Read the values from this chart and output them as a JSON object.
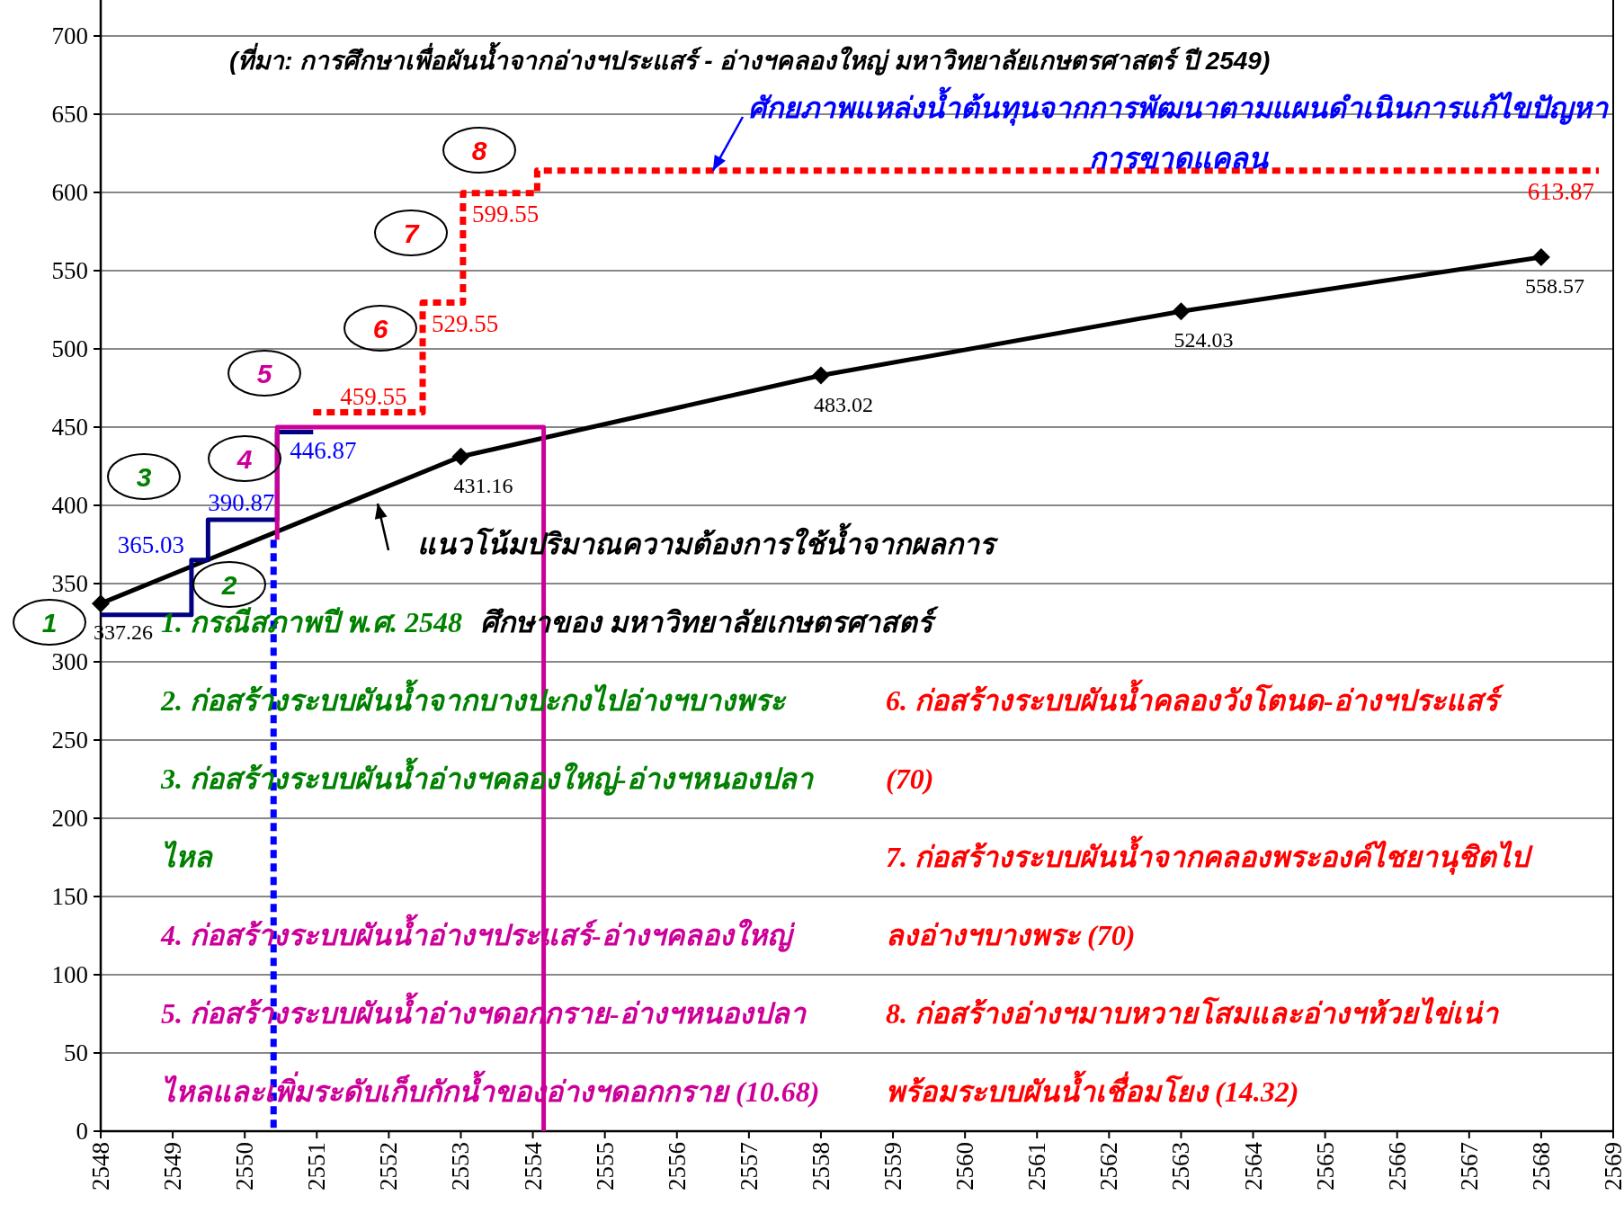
{
  "chart_data": {
    "type": "line",
    "xlim": [
      2548,
      2569
    ],
    "xticks": [
      2548,
      2549,
      2550,
      2551,
      2552,
      2553,
      2554,
      2555,
      2556,
      2557,
      2558,
      2559,
      2560,
      2561,
      2562,
      2563,
      2564,
      2565,
      2566,
      2567,
      2568,
      2569
    ],
    "ylim": [
      0,
      700
    ],
    "yticks": [
      0,
      50,
      100,
      150,
      200,
      250,
      300,
      350,
      400,
      450,
      500,
      550,
      600,
      650,
      700
    ],
    "grid": "y",
    "series": [
      {
        "color": "#000000",
        "marker": "diamond",
        "line_style": "solid",
        "x": [
          2548,
          2553,
          2558,
          2563,
          2568
        ],
        "values": [
          337.26,
          431.16,
          483.02,
          524.03,
          558.57
        ],
        "value_labels": [
          "337.26",
          "431.16",
          "483.02",
          "524.03",
          "558.57"
        ]
      },
      {
        "type": "step",
        "color": "#000080",
        "line_style": "solid",
        "x": [
          2548,
          2549.26,
          2549.49,
          2550.45,
          2550.95
        ],
        "values": [
          330,
          365.03,
          390.87,
          446.87,
          446.87
        ],
        "value_labels": [
          null,
          "365.03",
          "390.87",
          "446.87",
          null
        ]
      },
      {
        "type": "step",
        "color": "#ff0000",
        "line_style": "dotted",
        "x": [
          2550.95,
          2552.47,
          2553.03,
          2554.06,
          2568.8
        ],
        "values": [
          459.55,
          529.55,
          599.55,
          613.87,
          613.87
        ],
        "value_labels": [
          "459.55",
          "529.55",
          "599.55",
          null,
          "613.87"
        ]
      },
      {
        "color": "#cc0099",
        "line_style": "solid",
        "x": [
          2550.45,
          2550.45,
          2554.15,
          2554.15
        ],
        "values": [
          378,
          450,
          450,
          0
        ]
      },
      {
        "color": "#0000ff",
        "line_style": "dotted",
        "x": [
          2550.4,
          2550.4
        ],
        "values": [
          378,
          0
        ]
      }
    ],
    "annotations": [
      "(ที่มา: การศึกษาเพื่อผันน้ำจากอ่างฯประแสร์ - อ่างฯคลองใหญ่  มหาวิทยาลัยเกษตรศาสตร์ ปี 2549)",
      "1. กรณีสภาพปี พ.ศ. 2548",
      "2. ก่อสร้างระบบผันน้ำจากบางปะกงไปอ่างฯบางพระ",
      "3. ก่อสร้างระบบผันน้ำอ่างฯคลองใหญ่-อ่างฯหนองปลาไหล",
      "4. ก่อสร้างระบบผันน้ำอ่างฯประแสร์-อ่างฯคลองใหญ่",
      "5. ก่อสร้างระบบผันน้ำอ่างฯดอกกราย-อ่างฯหนองปลาไหลและเพิ่มระดับเก็บกักน้ำของอ่างฯดอกกราย (10.68)",
      "6. ก่อสร้างระบบผันน้ำคลองวังโตนด-อ่างฯประแสร์ (70)",
      "7. ก่อสร้างระบบผันน้ำจากคลองพระองค์ไชยานุชิตไปลงอ่างฯบางพระ (70)",
      "8. ก่อสร้างอ่างฯมาบหวายโสมและอ่างฯห้วยไข่เน่าพร้อมระบบผันน้ำเชื่อมโยง (14.32)",
      "แนวโน้มปริมาณความต้องการใช้น้ำจากผลการศึกษาของ มหาวิทยาลัยเกษตรศาสตร์",
      {
        "text": "ศักยภาพแหล่งน้ำต้นทุนจากการพัฒนาตามแผนดำเนินการแก้ไขปัญหาการขาดแคลน",
        "x": 2556.5,
        "y": 613.87
      },
      "1",
      "2",
      "3",
      "4",
      "5",
      "6",
      "7",
      "8"
    ]
  }
}
